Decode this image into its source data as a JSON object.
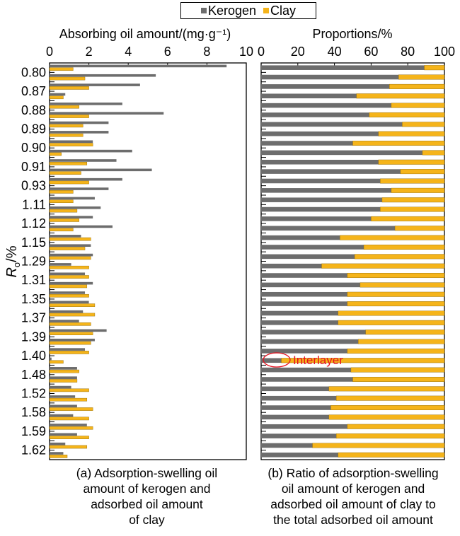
{
  "colors": {
    "kerogen": "#6d6d6d",
    "clay": "#f5b41a",
    "annotation": "#e8101e"
  },
  "legend": {
    "kerogen": "Kerogen",
    "clay": "Clay"
  },
  "y_axis_label": "R",
  "y_axis_label_sub": "o",
  "y_axis_label_unit": "/%",
  "panel_a": {
    "caption": [
      "(a) Adsorption-swelling oil",
      "amount of kerogen and",
      "adsorbed oil amount",
      "of clay"
    ]
  },
  "panel_b": {
    "caption": [
      "(b) Ratio of adsorption-swelling",
      "oil amount of kerogen and",
      "adsorbed oil amount of clay to",
      "the total adsorbed oil amount"
    ],
    "annotation": "Interlayer"
  },
  "chart_data": [
    {
      "type": "bar",
      "orientation": "horizontal",
      "title": "Absorbing oil amount/(mg·g⁻¹)",
      "xlim": [
        0,
        10
      ],
      "x_ticks": [
        "0",
        "2",
        "4",
        "6",
        "8",
        "10"
      ],
      "y_tick_labels": [
        "0.80",
        "0.87",
        "0.88",
        "0.89",
        "0.90",
        "0.91",
        "0.93",
        "1.11",
        "1.12",
        "1.15",
        "1.29",
        "1.31",
        "1.35",
        "1.37",
        "1.39",
        "1.40",
        "1.48",
        "1.52",
        "1.58",
        "1.59",
        "1.62"
      ],
      "series": [
        {
          "name": "Kerogen",
          "values": [
            9.0,
            5.4,
            4.6,
            0.8,
            3.7,
            5.8,
            3.0,
            3.0,
            2.2,
            4.2,
            3.4,
            5.2,
            3.7,
            3.0,
            2.3,
            2.6,
            2.2,
            3.2,
            1.6,
            2.1,
            2.2,
            1.1,
            1.8,
            2.2,
            1.8,
            2.0,
            1.7,
            1.5,
            2.9,
            2.3,
            1.8,
            0.1,
            1.4,
            1.4,
            1.1,
            1.3,
            1.4,
            1.2,
            1.9,
            1.4,
            0.8,
            0.7
          ]
        },
        {
          "name": "Clay",
          "values": [
            1.2,
            1.8,
            2.0,
            0.7,
            1.5,
            2.0,
            1.7,
            1.7,
            2.2,
            0.6,
            1.9,
            1.6,
            2.0,
            1.2,
            1.2,
            1.4,
            1.5,
            1.2,
            2.1,
            1.8,
            2.1,
            2.0,
            2.0,
            1.9,
            2.0,
            2.3,
            2.3,
            2.1,
            2.2,
            2.1,
            2.0,
            0.7,
            1.5,
            1.4,
            2.0,
            1.9,
            2.2,
            2.0,
            2.2,
            2.0,
            1.9,
            0.9
          ]
        }
      ]
    },
    {
      "type": "bar",
      "orientation": "horizontal",
      "stacked": true,
      "title": "Proportions/%",
      "xlim": [
        0,
        100
      ],
      "x_ticks": [
        "0",
        "20",
        "40",
        "60",
        "80",
        "100"
      ],
      "series": [
        {
          "name": "Kerogen",
          "values": [
            89,
            75,
            70,
            52,
            71,
            59,
            77,
            64,
            50,
            88,
            64,
            76,
            65,
            71,
            66,
            65,
            60,
            73,
            43,
            56,
            51,
            33,
            47,
            54,
            47,
            47,
            42,
            42,
            57,
            53,
            47,
            11,
            49,
            50,
            37,
            41,
            38,
            37,
            47,
            41,
            28,
            42
          ]
        },
        {
          "name": "Clay",
          "values": [
            11,
            25,
            30,
            48,
            29,
            41,
            23,
            36,
            50,
            12,
            36,
            24,
            35,
            29,
            34,
            35,
            40,
            27,
            57,
            44,
            49,
            67,
            53,
            46,
            53,
            53,
            58,
            58,
            43,
            47,
            53,
            89,
            51,
            50,
            63,
            59,
            62,
            63,
            53,
            59,
            72,
            58
          ]
        }
      ]
    }
  ]
}
